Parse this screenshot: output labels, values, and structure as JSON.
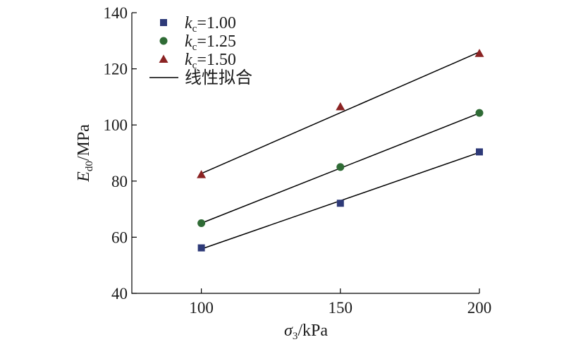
{
  "chart_data": {
    "type": "scatter",
    "x_ticks": [
      100,
      150,
      200
    ],
    "y_ticks": [
      40,
      60,
      80,
      100,
      120,
      140
    ],
    "xlim": [
      75,
      200
    ],
    "ylim": [
      40,
      140
    ],
    "grid": false,
    "legend_position": "top-left",
    "xlabel": {
      "symbol": "σ",
      "sub": "3",
      "unit": "/kPa"
    },
    "ylabel": {
      "symbol": "E",
      "sub": "d0",
      "unit": "/MPa"
    },
    "series": [
      {
        "name": {
          "symbol": "k",
          "sub": "c",
          "value": "=1.00"
        },
        "marker": "square",
        "color": "#2e3a78",
        "x": [
          100,
          150,
          200
        ],
        "y": [
          56.2,
          72.1,
          90.4
        ],
        "fit": [
          [
            100,
            55.8
          ],
          [
            200,
            90.2
          ]
        ]
      },
      {
        "name": {
          "symbol": "k",
          "sub": "c",
          "value": "=1.25"
        },
        "marker": "circle",
        "color": "#2f6b35",
        "x": [
          100,
          150,
          200
        ],
        "y": [
          65.0,
          85.0,
          104.3
        ],
        "fit": [
          [
            100,
            65.0
          ],
          [
            200,
            104.2
          ]
        ]
      },
      {
        "name": {
          "symbol": "k",
          "sub": "c",
          "value": "=1.50"
        },
        "marker": "triangle",
        "color": "#8b2323",
        "x": [
          100,
          150,
          200
        ],
        "y": [
          82.3,
          106.5,
          125.5
        ],
        "fit": [
          [
            100,
            82.7
          ],
          [
            200,
            126.0
          ]
        ]
      }
    ],
    "fit_legend_label": "线性拟合"
  }
}
